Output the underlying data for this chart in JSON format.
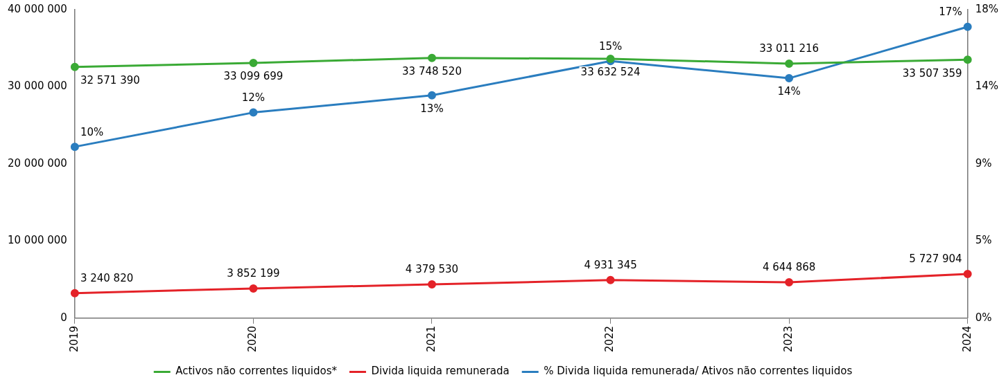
{
  "chart_data": {
    "type": "line",
    "categories": [
      "2019",
      "2020",
      "2021",
      "2022",
      "2023",
      "2024"
    ],
    "series": [
      {
        "name": "Activos não correntes liquidos*",
        "color": "#3aaa35",
        "values": [
          32571390,
          33099699,
          33748520,
          33632524,
          33011216,
          33507359
        ],
        "value_labels": [
          "32 571 390",
          "33 099 699",
          "33 748 520",
          "33 632 524",
          "33 011 216",
          "33 507 359"
        ]
      },
      {
        "name": "Divida liquida remunerada",
        "color": "#e42228",
        "values": [
          3240820,
          3852199,
          4379530,
          4931345,
          4644868,
          5727904
        ],
        "value_labels": [
          "3 240 820",
          "3 852 199",
          "4 379 530",
          "4 931 345",
          "4 644 868",
          "5 727 904"
        ]
      },
      {
        "name": "% Divida liquida remunerada/ Ativos não correntes liquidos",
        "color": "#2a7dbf",
        "axis": "y2",
        "values": [
          10,
          12,
          13,
          15,
          14,
          17
        ],
        "value_labels": [
          "10%",
          "12%",
          "13%",
          "15%",
          "14%",
          "17%"
        ]
      }
    ],
    "ylim": [
      0,
      40000000
    ],
    "yticks": [
      {
        "value": 0,
        "label": "0"
      },
      {
        "value": 10000000,
        "label": "10 000 000"
      },
      {
        "value": 20000000,
        "label": "20 000 000"
      },
      {
        "value": 30000000,
        "label": "30 000 000"
      },
      {
        "value": 40000000,
        "label": "40 000 000"
      }
    ],
    "y2lim": [
      0,
      18
    ],
    "y2ticks": [
      {
        "value": 0,
        "label": "0%"
      },
      {
        "value": 4.5,
        "label": "5%"
      },
      {
        "value": 9,
        "label": "9%"
      },
      {
        "value": 13.5,
        "label": "14%"
      },
      {
        "value": 18,
        "label": "18%"
      }
    ],
    "grid": false,
    "legend": "bottom",
    "marker": "circle",
    "line_style": "solid"
  }
}
